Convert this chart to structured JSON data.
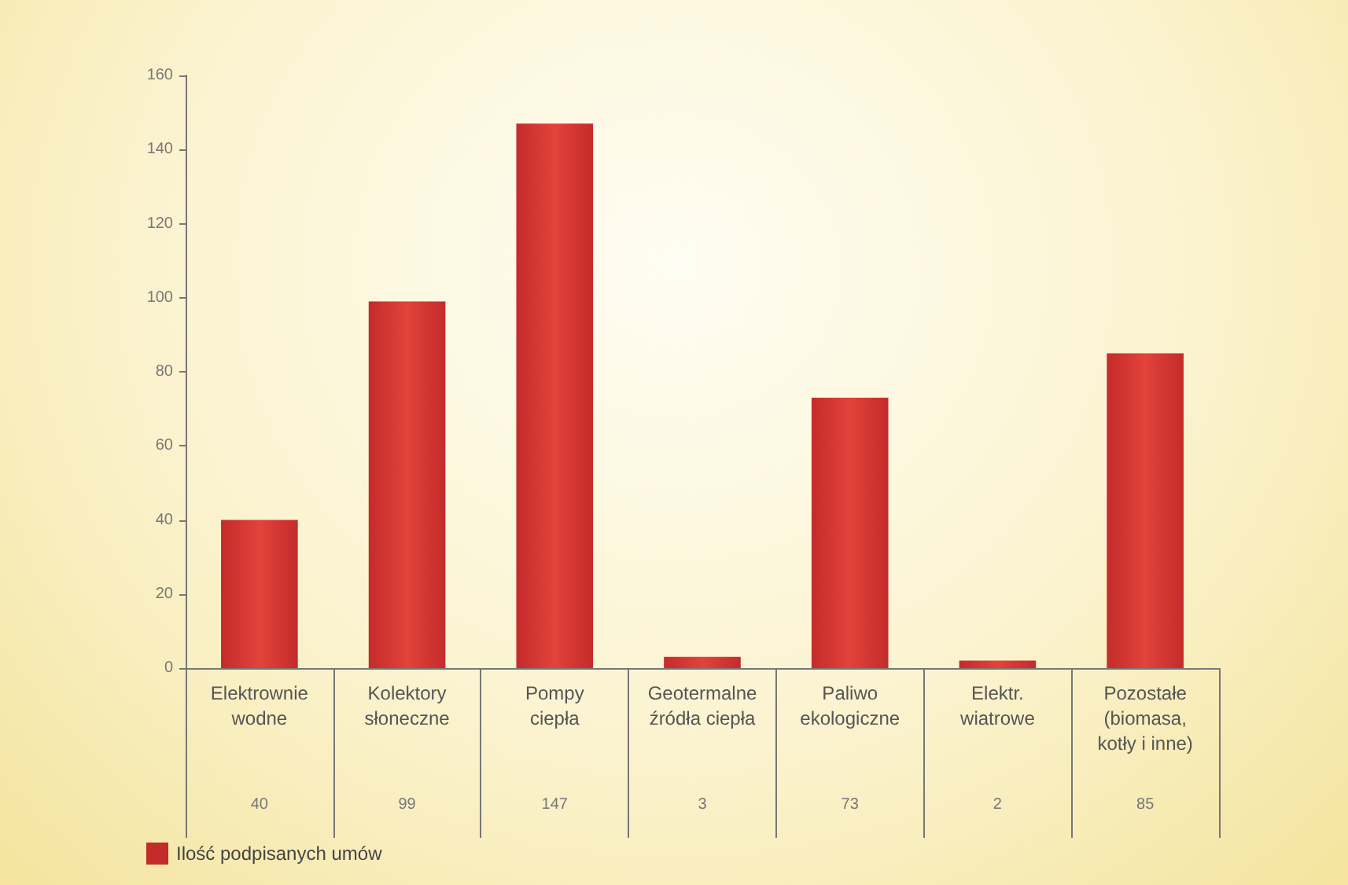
{
  "chart_data": {
    "type": "bar",
    "categories": [
      "Elektrownie\nwodne",
      "Kolektory\nsłoneczne",
      "Pompy\nciepła",
      "Geotermalne\nźródła ciepła",
      "Paliwo\nekologiczne",
      "Elektr.\nwiatrowe",
      "Pozostałe\n(biomasa,\nkotły i inne)"
    ],
    "series": [
      {
        "name": "Ilość podpisanych umów",
        "color": "#c42b2b",
        "values": [
          40,
          99,
          147,
          3,
          73,
          2,
          85
        ]
      }
    ],
    "ylim": [
      0,
      160
    ],
    "yticks": [
      0,
      20,
      40,
      60,
      80,
      100,
      120,
      140,
      160
    ],
    "grid": false,
    "legend": "bottom left",
    "data_labels": true
  }
}
